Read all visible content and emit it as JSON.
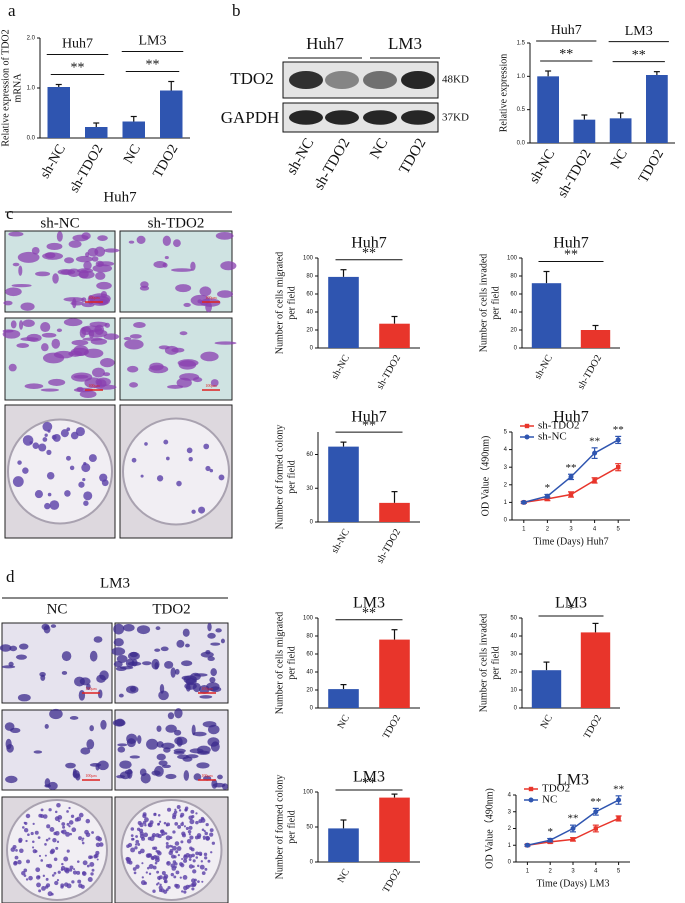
{
  "panel_labels": [
    "a",
    "b",
    "c",
    "d"
  ],
  "western_blot": {
    "groups": [
      "Huh7",
      "LM3"
    ],
    "proteins": [
      "TDO2",
      "GAPDH"
    ],
    "sizes": [
      "48KD",
      "37KD"
    ],
    "lanes": [
      "sh-NC",
      "sh-TDO2",
      "NC",
      "TDO2"
    ]
  },
  "image_panels": [
    {
      "title": "Huh7",
      "columns": [
        "sh-NC",
        "sh-TDO2"
      ]
    },
    {
      "title": "LM3",
      "columns": [
        "NC",
        "TDO2"
      ]
    }
  ],
  "scale_bar": "100μm",
  "chart_data": [
    {
      "type": "bar",
      "ylabel": [
        "Relative expression of TDO2",
        "mRNA"
      ],
      "categories": [
        "sh-NC",
        "sh-TDO2",
        "NC",
        "TDO2"
      ],
      "values": [
        1.02,
        0.22,
        0.33,
        0.95
      ],
      "errors": [
        0.05,
        0.08,
        0.1,
        0.18
      ],
      "colors": [
        "#2f55b0",
        "#2f55b0",
        "#2f55b0",
        "#2f55b0"
      ],
      "ylim": [
        0,
        2
      ],
      "yticks": [
        {
          "value": 0,
          "label": "0.0"
        },
        {
          "value": 1,
          "label": "1.0"
        },
        {
          "value": 2,
          "label": "2.0"
        }
      ],
      "groups": [
        "Huh7",
        "LM3"
      ],
      "significance": [
        "**",
        "**"
      ]
    },
    {
      "type": "bar",
      "ylabel": [
        "Relative expression"
      ],
      "categories": [
        "sh-NC",
        "sh-TDO2",
        "NC",
        "TDO2"
      ],
      "values": [
        1.0,
        0.35,
        0.37,
        1.02
      ],
      "errors": [
        0.08,
        0.07,
        0.08,
        0.05
      ],
      "colors": [
        "#2f55b0",
        "#2f55b0",
        "#2f55b0",
        "#2f55b0"
      ],
      "ylim": [
        0,
        1.5
      ],
      "yticks": [
        {
          "value": 0,
          "label": "0.0"
        },
        0.5,
        {
          "value": 1,
          "label": "1.0"
        },
        1.5
      ],
      "groups": [
        "Huh7",
        "LM3"
      ],
      "significance": [
        "**",
        "**"
      ]
    },
    {
      "type": "bar",
      "title": "Huh7",
      "ylabel": [
        "Number of cells migrated",
        "per field"
      ],
      "categories": [
        "sh-NC",
        "sh-TDO2"
      ],
      "values": [
        79,
        27
      ],
      "errors": [
        8,
        8
      ],
      "colors": [
        "#2f55b0",
        "#e8352b"
      ],
      "ylim": [
        0,
        100
      ],
      "yticks": [
        0,
        20,
        40,
        60,
        80,
        100
      ],
      "significance": [
        "**"
      ]
    },
    {
      "type": "bar",
      "title": "Huh7",
      "ylabel": [
        "Number of cells invaded",
        "per field"
      ],
      "categories": [
        "sh-NC",
        "sh-TDO2"
      ],
      "values": [
        72,
        20
      ],
      "errors": [
        13,
        5
      ],
      "colors": [
        "#2f55b0",
        "#e8352b"
      ],
      "ylim": [
        0,
        100
      ],
      "yticks": [
        0,
        20,
        40,
        60,
        80,
        100
      ],
      "significance": [
        "**"
      ]
    },
    {
      "type": "bar",
      "title": "Huh7",
      "ylabel": [
        "Number of formed colony",
        "per field"
      ],
      "categories": [
        "sh-NC",
        "sh-TDO2"
      ],
      "values": [
        67,
        17
      ],
      "errors": [
        4,
        10
      ],
      "colors": [
        "#2f55b0",
        "#e8352b"
      ],
      "ylim": [
        0,
        80
      ],
      "yticks": [
        0,
        30,
        60
      ],
      "significance": [
        "**"
      ]
    },
    {
      "type": "line",
      "title": "Huh7",
      "ylabel": [
        "OD Value（490nm)"
      ],
      "xlabel": "Time (Days) Huh7",
      "x": [
        1,
        2,
        3,
        4,
        5
      ],
      "xlim": [
        0.5,
        5.5
      ],
      "xticks": [
        1,
        2,
        3,
        4,
        5
      ],
      "ylim": [
        0,
        5
      ],
      "yticks": [
        0,
        1,
        2,
        3,
        4,
        5
      ],
      "legend": "upper left",
      "series": [
        {
          "name": "sh-TDO2",
          "color": "#e8352b",
          "values": [
            1.0,
            1.2,
            1.45,
            2.25,
            3.0
          ],
          "errors": [
            0.05,
            0.1,
            0.15,
            0.15,
            0.2
          ]
        },
        {
          "name": "sh-NC",
          "color": "#2f55b0",
          "values": [
            1.0,
            1.35,
            2.45,
            3.8,
            4.55
          ],
          "errors": [
            0.05,
            0.1,
            0.15,
            0.3,
            0.2
          ]
        }
      ],
      "significance": [
        null,
        "*",
        "**",
        "**",
        "**"
      ]
    },
    {
      "type": "bar",
      "title": "LM3",
      "ylabel": [
        "Number of cells migrated",
        "per field"
      ],
      "categories": [
        "NC",
        "TDO2"
      ],
      "values": [
        21,
        76
      ],
      "errors": [
        5,
        11
      ],
      "colors": [
        "#2f55b0",
        "#e8352b"
      ],
      "ylim": [
        0,
        100
      ],
      "yticks": [
        0,
        20,
        40,
        60,
        80,
        100
      ],
      "significance": [
        "**"
      ]
    },
    {
      "type": "bar",
      "title": "LM3",
      "ylabel": [
        "Number of cells invaded",
        "per field"
      ],
      "categories": [
        "NC",
        "TDO2"
      ],
      "values": [
        21,
        42
      ],
      "errors": [
        4.5,
        5
      ],
      "colors": [
        "#2f55b0",
        "#e8352b"
      ],
      "ylim": [
        0,
        50
      ],
      "yticks": [
        0,
        10,
        20,
        30,
        40,
        50
      ],
      "significance": [
        "*"
      ]
    },
    {
      "type": "bar",
      "title": "LM3",
      "ylabel": [
        "Number of formed colony",
        "per field"
      ],
      "categories": [
        "NC",
        "TDO2"
      ],
      "values": [
        48,
        92
      ],
      "errors": [
        12,
        5
      ],
      "colors": [
        "#2f55b0",
        "#e8352b"
      ],
      "ylim": [
        0,
        100
      ],
      "yticks": [
        0,
        50,
        100
      ],
      "significance": [
        "**"
      ]
    },
    {
      "type": "line",
      "title": "LM3",
      "ylabel": [
        "OD Value（490nm)"
      ],
      "xlabel": "Time (Days) LM3",
      "x": [
        1,
        2,
        3,
        4,
        5
      ],
      "xlim": [
        0.5,
        5.5
      ],
      "xticks": [
        1,
        2,
        3,
        4,
        5
      ],
      "ylim": [
        0,
        4
      ],
      "yticks": [
        0,
        1,
        2,
        3,
        4
      ],
      "legend": "upper left",
      "series": [
        {
          "name": "TDO2",
          "color": "#e8352b",
          "values": [
            1.0,
            1.2,
            1.35,
            2.0,
            2.6
          ],
          "errors": [
            0.05,
            0.08,
            0.1,
            0.2,
            0.15
          ]
        },
        {
          "name": "NC",
          "color": "#2f55b0",
          "values": [
            1.0,
            1.3,
            2.0,
            3.0,
            3.7
          ],
          "errors": [
            0.05,
            0.1,
            0.2,
            0.2,
            0.25
          ]
        }
      ],
      "significance": [
        null,
        "*",
        "**",
        "**",
        "**"
      ]
    }
  ]
}
